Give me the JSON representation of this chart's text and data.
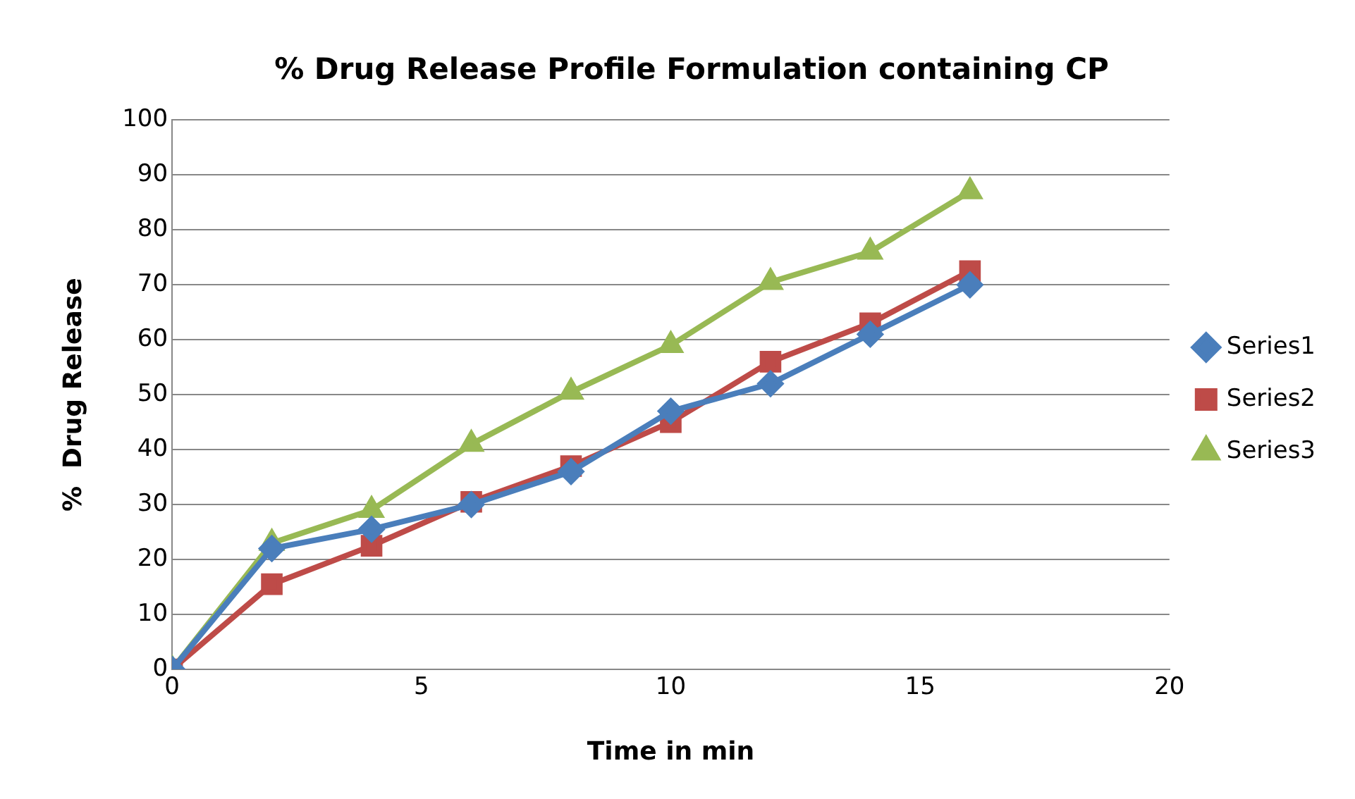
{
  "chart_data": {
    "type": "line",
    "title": "% Drug Release Profile Formulation containing CP",
    "xlabel": "Time in min",
    "ylabel": "%  Drug Release",
    "x": [
      0,
      2,
      4,
      6,
      8,
      10,
      12,
      14,
      16
    ],
    "series": [
      {
        "name": "Series1",
        "color": "#4a7ebb",
        "marker": "diamond",
        "values": [
          0,
          22,
          25.5,
          30,
          36,
          47,
          52,
          61,
          70
        ]
      },
      {
        "name": "Series2",
        "color": "#be4b48",
        "marker": "square",
        "values": [
          0,
          15.5,
          22.5,
          30.5,
          37,
          45,
          56,
          63,
          72.5
        ]
      },
      {
        "name": "Series3",
        "color": "#98b954",
        "marker": "triangle",
        "values": [
          0,
          23,
          29,
          41,
          50.5,
          59,
          70.5,
          76,
          87
        ]
      }
    ],
    "xlim": [
      0,
      20
    ],
    "xticks": [
      0,
      5,
      10,
      15,
      20
    ],
    "ylim": [
      0,
      100
    ],
    "yticks": [
      0,
      10,
      20,
      30,
      40,
      50,
      60,
      70,
      80,
      90,
      100
    ],
    "grid": "y",
    "legend": "right",
    "line_style": "solid"
  }
}
